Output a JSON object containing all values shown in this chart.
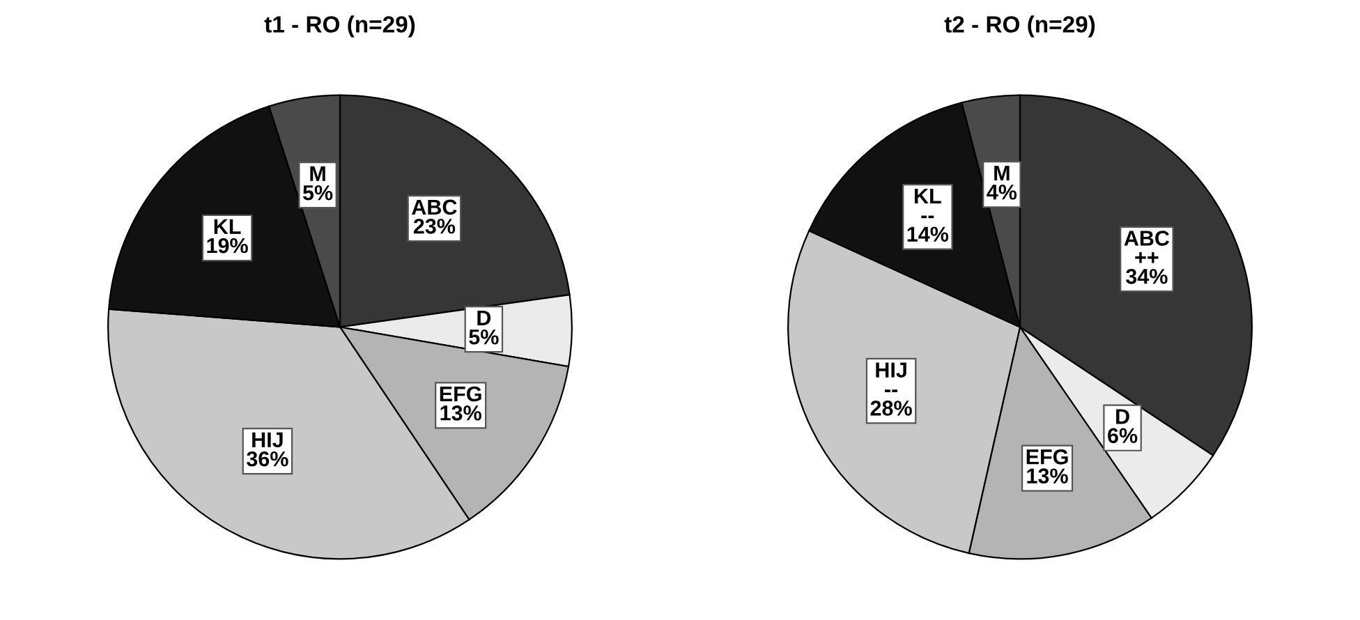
{
  "chart_data": [
    {
      "type": "pie",
      "title": "t1 - RO (n=29)",
      "categories": [
        "ABC",
        "D",
        "EFG",
        "HIJ",
        "KL",
        "M"
      ],
      "values": [
        23,
        5,
        13,
        36,
        19,
        5
      ],
      "colors": [
        "#363636",
        "#ebebeb",
        "#b4b4b4",
        "#c8c8c8",
        "#111111",
        "#4a4a4a"
      ],
      "value_labels": [
        "23%",
        "5%",
        "13%",
        "36%",
        "19%",
        "5%"
      ]
    },
    {
      "type": "pie",
      "title": "t2 - RO (n=29)",
      "categories": [
        "ABC\n++",
        "D",
        "EFG",
        "HIJ\n--",
        "KL\n--",
        "M"
      ],
      "values": [
        34,
        6,
        13,
        28,
        14,
        4
      ],
      "colors": [
        "#363636",
        "#ebebeb",
        "#b4b4b4",
        "#c8c8c8",
        "#111111",
        "#4a4a4a"
      ],
      "value_labels": [
        "34%",
        "6%",
        "13%",
        "28%",
        "14%",
        "4%"
      ]
    }
  ]
}
